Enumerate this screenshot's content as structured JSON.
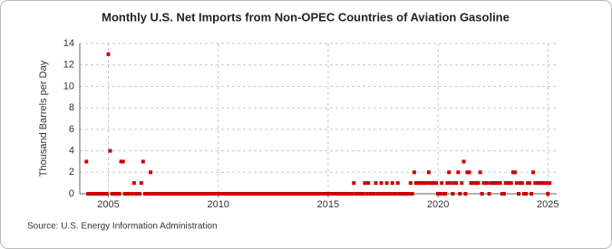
{
  "chart_data": {
    "type": "scatter",
    "title": "Monthly U.S. Net Imports from Non-OPEC Countries of Aviation Gasoline",
    "y_label": "Thousand Barrels per Day",
    "source": "Source: U.S. Energy Information Administration",
    "color": "#cc0000",
    "grid": true,
    "xlim": [
      2003.7,
      2025.4
    ],
    "xticks": [
      2005,
      2010,
      2015,
      2020,
      2025
    ],
    "ylim": [
      0,
      14
    ],
    "yticks": [
      0,
      2,
      4,
      6,
      8,
      10,
      12,
      14
    ],
    "x": [
      2004,
      2004.08,
      2004.17,
      2004.25,
      2004.33,
      2004.42,
      2004.5,
      2004.58,
      2004.67,
      2004.75,
      2004.83,
      2004.92,
      2005,
      2005.08,
      2005.17,
      2005.25,
      2005.33,
      2005.42,
      2005.5,
      2005.58,
      2005.67,
      2005.75,
      2005.83,
      2005.92,
      2006,
      2006.08,
      2006.17,
      2006.25,
      2006.33,
      2006.42,
      2006.5,
      2006.58,
      2006.67,
      2006.75,
      2006.83,
      2006.92,
      2007,
      2007.08,
      2007.17,
      2007.25,
      2007.33,
      2007.42,
      2007.5,
      2007.58,
      2007.67,
      2007.75,
      2007.83,
      2007.92,
      2008,
      2008.08,
      2008.17,
      2008.25,
      2008.33,
      2008.42,
      2008.5,
      2008.58,
      2008.67,
      2008.75,
      2008.83,
      2008.92,
      2009,
      2009.08,
      2009.17,
      2009.25,
      2009.33,
      2009.42,
      2009.5,
      2009.58,
      2009.67,
      2009.75,
      2009.83,
      2009.92,
      2010,
      2010.08,
      2010.17,
      2010.25,
      2010.33,
      2010.42,
      2010.5,
      2010.58,
      2010.67,
      2010.75,
      2010.83,
      2010.92,
      2011,
      2011.08,
      2011.17,
      2011.25,
      2011.33,
      2011.42,
      2011.5,
      2011.58,
      2011.67,
      2011.75,
      2011.83,
      2011.92,
      2012,
      2012.08,
      2012.17,
      2012.25,
      2012.33,
      2012.42,
      2012.5,
      2012.58,
      2012.67,
      2012.75,
      2012.83,
      2012.92,
      2013,
      2013.08,
      2013.17,
      2013.25,
      2013.33,
      2013.42,
      2013.5,
      2013.58,
      2013.67,
      2013.75,
      2013.83,
      2013.92,
      2014,
      2014.08,
      2014.17,
      2014.25,
      2014.33,
      2014.42,
      2014.5,
      2014.58,
      2014.67,
      2014.75,
      2014.83,
      2014.92,
      2015,
      2015.08,
      2015.17,
      2015.25,
      2015.33,
      2015.42,
      2015.5,
      2015.58,
      2015.67,
      2015.75,
      2015.83,
      2015.92,
      2016,
      2016.08,
      2016.17,
      2016.25,
      2016.33,
      2016.42,
      2016.5,
      2016.58,
      2016.67,
      2016.75,
      2016.83,
      2016.92,
      2017,
      2017.08,
      2017.17,
      2017.25,
      2017.33,
      2017.42,
      2017.5,
      2017.58,
      2017.67,
      2017.75,
      2017.83,
      2017.92,
      2018,
      2018.08,
      2018.17,
      2018.25,
      2018.33,
      2018.42,
      2018.5,
      2018.58,
      2018.67,
      2018.75,
      2018.83,
      2018.92,
      2019,
      2019.08,
      2019.17,
      2019.25,
      2019.33,
      2019.42,
      2019.5,
      2019.58,
      2019.67,
      2019.75,
      2019.83,
      2019.92,
      2020,
      2020.08,
      2020.17,
      2020.25,
      2020.33,
      2020.42,
      2020.5,
      2020.58,
      2020.67,
      2020.75,
      2020.83,
      2020.92,
      2021,
      2021.08,
      2021.17,
      2021.25,
      2021.33,
      2021.42,
      2021.5,
      2021.58,
      2021.67,
      2021.75,
      2021.83,
      2021.92,
      2022,
      2022.08,
      2022.17,
      2022.25,
      2022.33,
      2022.42,
      2022.5,
      2022.58,
      2022.67,
      2022.75,
      2022.83,
      2022.92,
      2023,
      2023.08,
      2023.17,
      2023.25,
      2023.33,
      2023.42,
      2023.5,
      2023.58,
      2023.67,
      2023.75,
      2023.83,
      2023.92,
      2024,
      2024.08,
      2024.17,
      2024.25,
      2024.33,
      2024.42,
      2024.5,
      2024.58,
      2024.67,
      2024.75,
      2024.83,
      2024.92,
      2025,
      2025.08
    ],
    "values": [
      3,
      0,
      0,
      0,
      0,
      0,
      0,
      0,
      0,
      0,
      0,
      0,
      13,
      4,
      0,
      0,
      0,
      0,
      0,
      3,
      3,
      0,
      0,
      0,
      0,
      0,
      1,
      0,
      0,
      0,
      1,
      3,
      0,
      0,
      0,
      2,
      0,
      0,
      0,
      0,
      0,
      0,
      0,
      0,
      0,
      0,
      0,
      0,
      0,
      0,
      0,
      0,
      0,
      0,
      0,
      0,
      0,
      0,
      0,
      0,
      0,
      0,
      0,
      0,
      0,
      0,
      0,
      0,
      0,
      0,
      0,
      0,
      0,
      0,
      0,
      0,
      0,
      0,
      0,
      0,
      0,
      0,
      0,
      0,
      0,
      0,
      0,
      0,
      0,
      0,
      0,
      0,
      0,
      0,
      0,
      0,
      0,
      0,
      0,
      0,
      0,
      0,
      0,
      0,
      0,
      0,
      0,
      0,
      0,
      0,
      0,
      0,
      0,
      0,
      0,
      0,
      0,
      0,
      0,
      0,
      0,
      0,
      0,
      0,
      0,
      0,
      0,
      0,
      0,
      0,
      0,
      0,
      0,
      0,
      0,
      0,
      0,
      0,
      0,
      0,
      0,
      0,
      0,
      0,
      0,
      0,
      1,
      0,
      0,
      0,
      0,
      0,
      1,
      0,
      1,
      0,
      0,
      0,
      1,
      0,
      0,
      1,
      0,
      0,
      1,
      0,
      0,
      1,
      0,
      0,
      1,
      0,
      0,
      0,
      0,
      0,
      0,
      1,
      0,
      2,
      1,
      1,
      1,
      1,
      1,
      1,
      1,
      2,
      1,
      1,
      1,
      1,
      0,
      0,
      1,
      0,
      0,
      1,
      2,
      1,
      0,
      1,
      1,
      2,
      0,
      1,
      3,
      0,
      2,
      2,
      1,
      1,
      1,
      1,
      1,
      2,
      0,
      1,
      1,
      1,
      0,
      1,
      1,
      1,
      1,
      1,
      1,
      0,
      0,
      1,
      1,
      1,
      1,
      2,
      2,
      1,
      0,
      1,
      1,
      0,
      0,
      1,
      1,
      0,
      2,
      1,
      1,
      1,
      1,
      1,
      1,
      1,
      0,
      1
    ]
  }
}
